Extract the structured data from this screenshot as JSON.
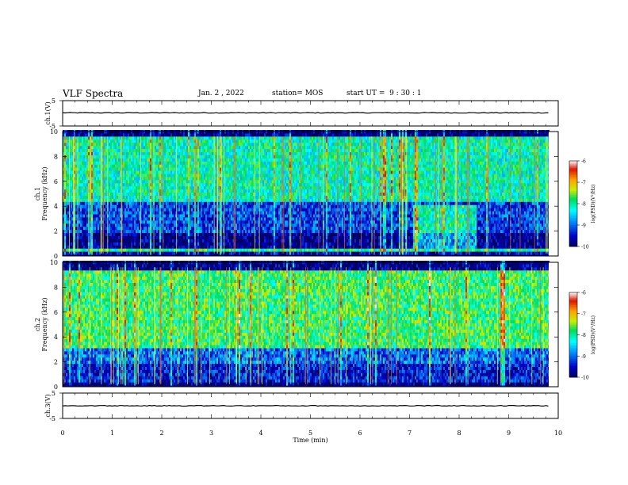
{
  "header": {
    "title": "VLF Spectra",
    "date": "Jan. 2 , 2022",
    "station": "station= MOS",
    "start": "start UT =  9 : 30 : 1"
  },
  "chart_data": [
    {
      "type": "line",
      "panel": "ch1-voltage",
      "ylabel": "ch.1(V)",
      "ylim": [
        -5,
        5
      ],
      "yticks": [
        "5",
        "-5"
      ],
      "xlim": [
        0,
        10
      ],
      "series": [
        {
          "x": [
            0,
            10
          ],
          "values": [
            0.2,
            0.2
          ]
        }
      ]
    },
    {
      "type": "heatmap",
      "panel": "ch1-spectrogram",
      "ylabel": "ch.1\nFrequency (kHz)",
      "ylim": [
        0,
        10
      ],
      "yticks": [
        "0",
        "2",
        "4",
        "6",
        "8",
        "10"
      ],
      "xlim": [
        0,
        9.82
      ],
      "colorbar": {
        "label": "log(PSD)(V²/Hz)",
        "range": [
          -10,
          -6
        ],
        "ticks": [
          "-6",
          "-7",
          "-8",
          "-9",
          "-10"
        ]
      },
      "bands_khz": [
        {
          "range": [
            9.4,
            10
          ],
          "level": -9.8
        },
        {
          "range": [
            4.2,
            9.4
          ],
          "level": -8.1
        },
        {
          "range": [
            1.7,
            4.2
          ],
          "level": -9.2
        },
        {
          "range": [
            0.6,
            1.7
          ],
          "level": -9.8
        },
        {
          "range": [
            0.2,
            0.6
          ],
          "level": -8.0
        },
        {
          "range": [
            0,
            0.2
          ],
          "level": -9.6
        }
      ]
    },
    {
      "type": "heatmap",
      "panel": "ch2-spectrogram",
      "ylabel": "ch.2\nFrequency (kHz)",
      "ylim": [
        0,
        10
      ],
      "yticks": [
        "0",
        "2",
        "4",
        "6",
        "8",
        "10"
      ],
      "xlim": [
        0,
        9.82
      ],
      "colorbar": {
        "label": "log(PSD)(V²/Hz)",
        "range": [
          -10,
          -6
        ],
        "ticks": [
          "-6",
          "-7",
          "-8",
          "-9",
          "-10"
        ]
      },
      "bands_khz": [
        {
          "range": [
            9.3,
            10
          ],
          "level": -9.8
        },
        {
          "range": [
            3.0,
            9.3
          ],
          "level": -7.8
        },
        {
          "range": [
            1.8,
            3.0
          ],
          "level": -9.0
        },
        {
          "range": [
            0.3,
            1.8
          ],
          "level": -9.4
        },
        {
          "range": [
            0,
            0.3
          ],
          "level": -9.9
        }
      ]
    },
    {
      "type": "line",
      "panel": "ch3-voltage",
      "ylabel": "ch.3(V)",
      "ylim": [
        -5,
        5
      ],
      "yticks": [
        "5",
        "-5"
      ],
      "xlim": [
        0,
        10
      ],
      "xlabel": "Time (min)",
      "xticks": [
        "0",
        "1",
        "2",
        "3",
        "4",
        "5",
        "6",
        "7",
        "8",
        "9",
        "10"
      ],
      "series": [
        {
          "x": [
            0,
            10
          ],
          "values": [
            0.0,
            0.0
          ]
        }
      ]
    }
  ]
}
